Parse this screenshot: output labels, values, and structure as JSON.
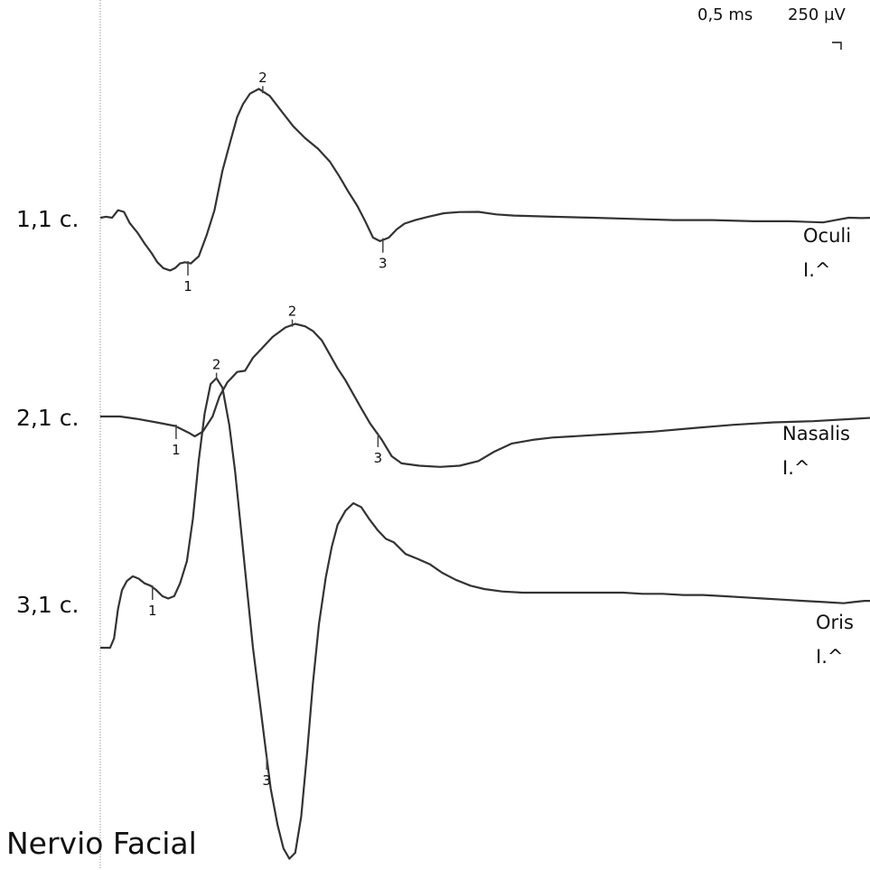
{
  "title": "Nervio Facial",
  "scale": {
    "time": "0,5 ms",
    "amplitude": "250 µV"
  },
  "chart_data": {
    "type": "line",
    "title": "Nervio Facial",
    "x_unit": "ms",
    "y_unit": "µV",
    "time_per_division": 0.5,
    "amplitude_per_division": 250,
    "grid": false,
    "traces": [
      {
        "id": "t1",
        "label": "1,1 c.",
        "muscle": "Oculi",
        "side": "I.^",
        "markers": [
          {
            "label": "1",
            "t": 0.89
          },
          {
            "label": "2",
            "t": 1.65
          },
          {
            "label": "3",
            "t": 2.87
          }
        ],
        "points": [
          [
            0.0,
            0
          ],
          [
            0.06,
            5
          ],
          [
            0.12,
            0
          ],
          [
            0.18,
            38
          ],
          [
            0.24,
            30
          ],
          [
            0.3,
            -28
          ],
          [
            0.38,
            -77
          ],
          [
            0.45,
            -131
          ],
          [
            0.52,
            -179
          ],
          [
            0.58,
            -226
          ],
          [
            0.64,
            -256
          ],
          [
            0.71,
            -268
          ],
          [
            0.76,
            -256
          ],
          [
            0.81,
            -232
          ],
          [
            0.86,
            -226
          ],
          [
            0.92,
            -232
          ],
          [
            1.0,
            -196
          ],
          [
            1.08,
            -89
          ],
          [
            1.16,
            38
          ],
          [
            1.24,
            238
          ],
          [
            1.32,
            386
          ],
          [
            1.39,
            511
          ],
          [
            1.45,
            577
          ],
          [
            1.52,
            630
          ],
          [
            1.61,
            654
          ],
          [
            1.72,
            619
          ],
          [
            1.85,
            535
          ],
          [
            1.96,
            464
          ],
          [
            2.08,
            404
          ],
          [
            2.21,
            351
          ],
          [
            2.33,
            286
          ],
          [
            2.43,
            208
          ],
          [
            2.52,
            131
          ],
          [
            2.61,
            60
          ],
          [
            2.69,
            -17
          ],
          [
            2.77,
            -101
          ],
          [
            2.84,
            -119
          ],
          [
            2.93,
            -101
          ],
          [
            3.01,
            -59
          ],
          [
            3.09,
            -30
          ],
          [
            3.2,
            -12
          ],
          [
            3.33,
            5
          ],
          [
            3.49,
            23
          ],
          [
            3.65,
            29
          ],
          [
            3.84,
            30
          ],
          [
            4.02,
            17
          ],
          [
            4.2,
            11
          ],
          [
            4.59,
            5
          ],
          [
            5.0,
            0
          ],
          [
            5.41,
            -6
          ],
          [
            5.82,
            -12
          ],
          [
            6.22,
            -12
          ],
          [
            6.63,
            -18
          ],
          [
            7.0,
            -18
          ],
          [
            7.34,
            -24
          ],
          [
            7.47,
            -12
          ],
          [
            7.6,
            0
          ],
          [
            7.73,
            -2
          ],
          [
            7.86,
            0
          ]
        ]
      },
      {
        "id": "t2",
        "label": "2,1 c.",
        "muscle": "Nasalis",
        "side": "I.^",
        "markers": [
          {
            "label": "1",
            "t": 0.77
          },
          {
            "label": "2",
            "t": 1.95
          },
          {
            "label": "3",
            "t": 2.82
          }
        ],
        "points": [
          [
            0.0,
            0
          ],
          [
            0.2,
            0
          ],
          [
            0.37,
            -12
          ],
          [
            0.57,
            -30
          ],
          [
            0.76,
            -48
          ],
          [
            0.9,
            -83
          ],
          [
            0.96,
            -101
          ],
          [
            1.04,
            -77
          ],
          [
            1.14,
            0
          ],
          [
            1.21,
            101
          ],
          [
            1.29,
            173
          ],
          [
            1.39,
            226
          ],
          [
            1.47,
            232
          ],
          [
            1.55,
            298
          ],
          [
            1.65,
            351
          ],
          [
            1.75,
            404
          ],
          [
            1.88,
            452
          ],
          [
            1.98,
            470
          ],
          [
            2.08,
            458
          ],
          [
            2.16,
            434
          ],
          [
            2.25,
            386
          ],
          [
            2.33,
            315
          ],
          [
            2.41,
            244
          ],
          [
            2.49,
            184
          ],
          [
            2.57,
            113
          ],
          [
            2.65,
            42
          ],
          [
            2.74,
            -36
          ],
          [
            2.86,
            -119
          ],
          [
            2.96,
            -202
          ],
          [
            3.06,
            -238
          ],
          [
            3.24,
            -250
          ],
          [
            3.45,
            -256
          ],
          [
            3.65,
            -250
          ],
          [
            3.84,
            -226
          ],
          [
            4.0,
            -179
          ],
          [
            4.18,
            -137
          ],
          [
            4.39,
            -119
          ],
          [
            4.59,
            -107
          ],
          [
            4.8,
            -101
          ],
          [
            5.2,
            -89
          ],
          [
            5.61,
            -77
          ],
          [
            6.02,
            -59
          ],
          [
            6.43,
            -42
          ],
          [
            6.84,
            -30
          ],
          [
            7.24,
            -24
          ],
          [
            7.65,
            -12
          ],
          [
            7.86,
            -6
          ]
        ]
      },
      {
        "id": "t3",
        "label": "3,1 c.",
        "muscle": "Oris",
        "side": "I.^",
        "markers": [
          {
            "label": "1",
            "t": 0.53
          },
          {
            "label": "2",
            "t": 1.18
          },
          {
            "label": "3",
            "t": 1.69
          }
        ],
        "points": [
          [
            0.0,
            0
          ],
          [
            0.1,
            0
          ],
          [
            0.14,
            48
          ],
          [
            0.18,
            196
          ],
          [
            0.22,
            292
          ],
          [
            0.27,
            339
          ],
          [
            0.33,
            363
          ],
          [
            0.39,
            351
          ],
          [
            0.45,
            327
          ],
          [
            0.51,
            315
          ],
          [
            0.57,
            292
          ],
          [
            0.63,
            262
          ],
          [
            0.69,
            250
          ],
          [
            0.75,
            262
          ],
          [
            0.81,
            327
          ],
          [
            0.88,
            440
          ],
          [
            0.94,
            654
          ],
          [
            1.0,
            952
          ],
          [
            1.06,
            1189
          ],
          [
            1.12,
            1339
          ],
          [
            1.18,
            1369
          ],
          [
            1.24,
            1321
          ],
          [
            1.31,
            1131
          ],
          [
            1.37,
            893
          ],
          [
            1.43,
            595
          ],
          [
            1.49,
            298
          ],
          [
            1.55,
            0
          ],
          [
            1.61,
            -238
          ],
          [
            1.67,
            -476
          ],
          [
            1.73,
            -714
          ],
          [
            1.8,
            -899
          ],
          [
            1.86,
            -1018
          ],
          [
            1.92,
            -1071
          ],
          [
            1.98,
            -1041
          ],
          [
            2.04,
            -857
          ],
          [
            2.1,
            -536
          ],
          [
            2.16,
            -179
          ],
          [
            2.22,
            119
          ],
          [
            2.29,
            357
          ],
          [
            2.35,
            512
          ],
          [
            2.41,
            625
          ],
          [
            2.49,
            696
          ],
          [
            2.57,
            734
          ],
          [
            2.65,
            714
          ],
          [
            2.73,
            654
          ],
          [
            2.82,
            595
          ],
          [
            2.9,
            553
          ],
          [
            2.98,
            536
          ],
          [
            3.1,
            476
          ],
          [
            3.22,
            452
          ],
          [
            3.35,
            423
          ],
          [
            3.47,
            381
          ],
          [
            3.61,
            345
          ],
          [
            3.76,
            315
          ],
          [
            3.9,
            298
          ],
          [
            4.08,
            286
          ],
          [
            4.29,
            280
          ],
          [
            4.49,
            280
          ],
          [
            4.69,
            280
          ],
          [
            4.9,
            280
          ],
          [
            5.1,
            280
          ],
          [
            5.31,
            280
          ],
          [
            5.51,
            274
          ],
          [
            5.71,
            274
          ],
          [
            5.92,
            268
          ],
          [
            6.12,
            268
          ],
          [
            6.33,
            262
          ],
          [
            6.53,
            256
          ],
          [
            6.73,
            250
          ],
          [
            6.94,
            244
          ],
          [
            7.14,
            238
          ],
          [
            7.35,
            232
          ],
          [
            7.55,
            226
          ],
          [
            7.65,
            232
          ],
          [
            7.76,
            238
          ],
          [
            7.86,
            238
          ]
        ]
      }
    ]
  }
}
